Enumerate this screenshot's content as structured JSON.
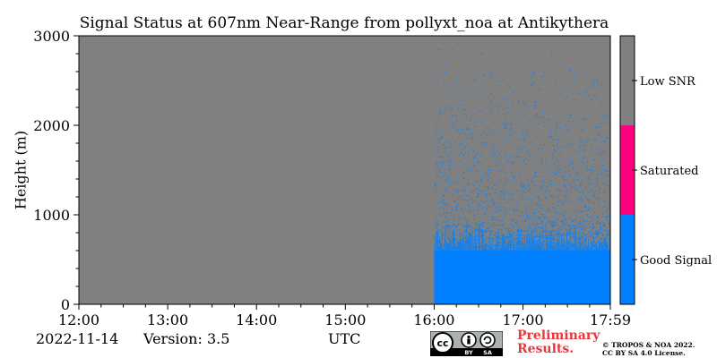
{
  "chart_data": {
    "type": "heatmap",
    "title": "Signal Status at 607nm Near-Range from pollyxt_noa at Antikythera",
    "ylabel": "Height (m)",
    "xlabel": "UTC",
    "x_ticks": [
      "12:00",
      "13:00",
      "14:00",
      "15:00",
      "16:00",
      "17:00",
      "17:59"
    ],
    "x_range": [
      "12:00",
      "17:59"
    ],
    "y_ticks": [
      0,
      1000,
      2000,
      3000
    ],
    "ylim": [
      0,
      3000
    ],
    "status_classes": [
      {
        "label": "Good Signal",
        "color": "#0080ff"
      },
      {
        "label": "Saturated",
        "color": "#ff0080"
      },
      {
        "label": "Low SNR",
        "color": "#808080"
      }
    ],
    "background_status": "Low SNR",
    "regions": [
      {
        "status": "Good Signal",
        "time_start": "16:00",
        "time_end": "17:59",
        "height_bottom": 0,
        "height_top": 600,
        "coverage": "dense"
      },
      {
        "status": "Good Signal",
        "time_start": "16:00",
        "time_end": "17:59",
        "height_bottom": 600,
        "height_top": 1000,
        "coverage": "sparse"
      },
      {
        "status": "Good Signal",
        "time_start": "16:00",
        "time_end": "17:59",
        "height_bottom": 1000,
        "height_top": 3000,
        "coverage": "scattered"
      }
    ]
  },
  "footer": {
    "date": "2022-11-14",
    "version": "Version: 3.5",
    "xlabel": "UTC",
    "preliminary_line1": "Preliminary",
    "preliminary_line2": "Results.",
    "copyright_line1": "© TROPOS & NOA 2022.",
    "copyright_line2": "CC BY SA 4.0 License.",
    "license_logo": {
      "cc": "cc",
      "by": "BY",
      "sa": "SA"
    }
  }
}
